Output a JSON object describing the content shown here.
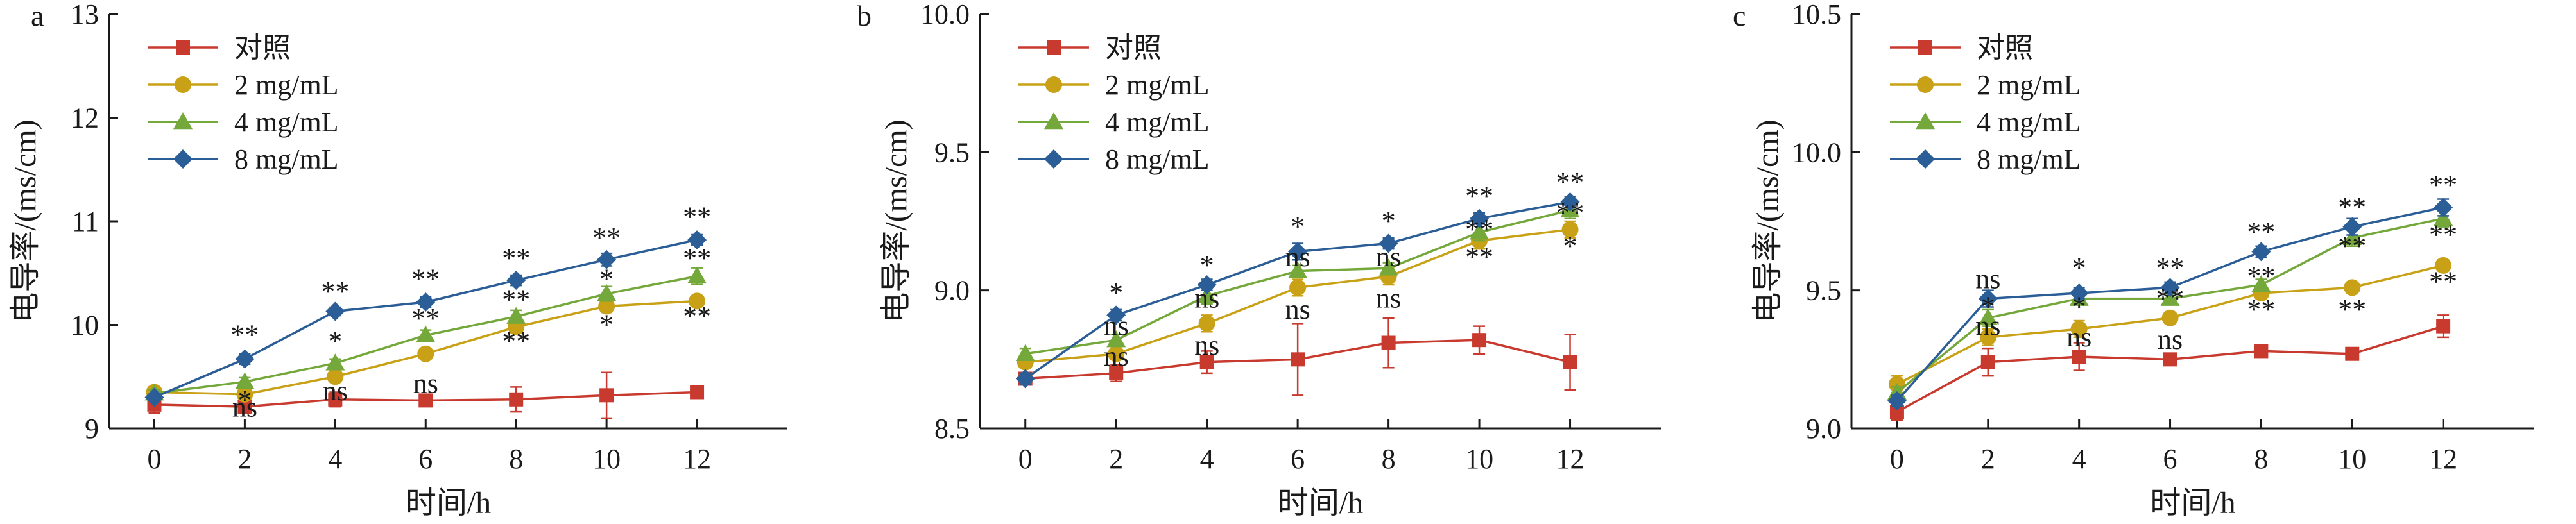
{
  "figure": {
    "colors": {
      "axis": "#1a1a1a",
      "errorbar": "#c8392e",
      "对照": "#c8392e",
      "2 mg/mL": "#c9a116",
      "4 mg/mL": "#74a83a",
      "8 mg/mL": "#2b5d96"
    },
    "markers": {
      "对照": "square",
      "2 mg/mL": "circle",
      "4 mg/mL": "triangle",
      "8 mg/mL": "diamond"
    }
  },
  "chart_data": [
    {
      "panel_label": "a",
      "type": "line",
      "xlabel": "时间/h",
      "ylabel": "电导率/(ms/cm)",
      "x": [
        0,
        2,
        4,
        6,
        8,
        10,
        12
      ],
      "xlim": [
        -1,
        14
      ],
      "ylim": [
        9,
        13
      ],
      "yticks": [
        9,
        10,
        11,
        12,
        13
      ],
      "ytick_labels": [
        "9",
        "10",
        "11",
        "12",
        "13"
      ],
      "legend_position": "top-left",
      "series": [
        {
          "name": "对照",
          "values": [
            9.23,
            9.21,
            9.28,
            9.27,
            9.28,
            9.32,
            9.35
          ],
          "err": [
            0.08,
            0.05,
            0.07,
            0.05,
            0.12,
            0.22,
            0.03
          ]
        },
        {
          "name": "2 mg/mL",
          "values": [
            9.35,
            9.33,
            9.5,
            9.72,
            9.98,
            10.18,
            10.23
          ],
          "err": [
            0.03,
            0.03,
            0.04,
            0.05,
            0.06,
            0.06,
            0.05
          ]
        },
        {
          "name": "4 mg/mL",
          "values": [
            9.34,
            9.45,
            9.63,
            9.9,
            10.08,
            10.3,
            10.47
          ],
          "err": [
            0.03,
            0.04,
            0.04,
            0.05,
            0.06,
            0.07,
            0.08
          ]
        },
        {
          "name": "8 mg/mL",
          "values": [
            9.3,
            9.67,
            10.13,
            10.22,
            10.43,
            10.63,
            10.82
          ],
          "err": [
            0.03,
            0.05,
            0.04,
            0.05,
            0.05,
            0.06,
            0.05
          ]
        }
      ],
      "annotations": [
        {
          "x": 2,
          "y": 9.9,
          "text": "**"
        },
        {
          "x": 2,
          "y": 9.27,
          "text": "*"
        },
        {
          "x": 2,
          "y": 9.2,
          "text": "ns"
        },
        {
          "x": 4,
          "y": 10.32,
          "text": "**"
        },
        {
          "x": 4,
          "y": 9.84,
          "text": "*"
        },
        {
          "x": 4,
          "y": 9.36,
          "text": "ns"
        },
        {
          "x": 6,
          "y": 10.44,
          "text": "**"
        },
        {
          "x": 6,
          "y": 10.06,
          "text": "**"
        },
        {
          "x": 6,
          "y": 9.43,
          "text": "ns"
        },
        {
          "x": 8,
          "y": 10.64,
          "text": "**"
        },
        {
          "x": 8,
          "y": 10.24,
          "text": "**"
        },
        {
          "x": 8,
          "y": 9.84,
          "text": "**"
        },
        {
          "x": 10,
          "y": 10.84,
          "text": "**"
        },
        {
          "x": 10,
          "y": 10.44,
          "text": "*"
        },
        {
          "x": 10,
          "y": 10.0,
          "text": "*"
        },
        {
          "x": 12,
          "y": 11.04,
          "text": "**"
        },
        {
          "x": 12,
          "y": 10.64,
          "text": "**"
        },
        {
          "x": 12,
          "y": 10.08,
          "text": "**"
        }
      ]
    },
    {
      "panel_label": "b",
      "type": "line",
      "xlabel": "时间/h",
      "ylabel": "电导率/(ms/cm)",
      "x": [
        0,
        2,
        4,
        6,
        8,
        10,
        12
      ],
      "xlim": [
        -1,
        14
      ],
      "ylim": [
        8.5,
        10.0
      ],
      "yticks": [
        8.5,
        9.0,
        9.5,
        10.0
      ],
      "ytick_labels": [
        "8.5",
        "9.0",
        "9.5",
        "10.0"
      ],
      "legend_position": "top-left",
      "series": [
        {
          "name": "对照",
          "values": [
            8.68,
            8.7,
            8.74,
            8.75,
            8.81,
            8.82,
            8.74
          ],
          "err": [
            0.02,
            0.03,
            0.04,
            0.13,
            0.09,
            0.05,
            0.1
          ]
        },
        {
          "name": "2 mg/mL",
          "values": [
            8.74,
            8.77,
            8.88,
            9.01,
            9.05,
            9.18,
            9.22
          ],
          "err": [
            0.02,
            0.02,
            0.03,
            0.03,
            0.03,
            0.03,
            0.03
          ]
        },
        {
          "name": "4 mg/mL",
          "values": [
            8.77,
            8.82,
            8.98,
            9.07,
            9.08,
            9.21,
            9.29
          ],
          "err": [
            0.02,
            0.02,
            0.03,
            0.02,
            0.02,
            0.03,
            0.03
          ]
        },
        {
          "name": "8 mg/mL",
          "values": [
            8.68,
            8.91,
            9.02,
            9.14,
            9.17,
            9.26,
            9.32
          ],
          "err": [
            0.02,
            0.02,
            0.02,
            0.03,
            0.02,
            0.02,
            0.02
          ]
        }
      ],
      "annotations": [
        {
          "x": 2,
          "y": 8.99,
          "text": "*"
        },
        {
          "x": 2,
          "y": 8.87,
          "text": "ns"
        },
        {
          "x": 2,
          "y": 8.76,
          "text": "ns"
        },
        {
          "x": 4,
          "y": 9.09,
          "text": "*"
        },
        {
          "x": 4,
          "y": 8.97,
          "text": "ns"
        },
        {
          "x": 4,
          "y": 8.8,
          "text": "ns"
        },
        {
          "x": 6,
          "y": 9.23,
          "text": "*"
        },
        {
          "x": 6,
          "y": 9.12,
          "text": "ns"
        },
        {
          "x": 6,
          "y": 8.93,
          "text": "ns"
        },
        {
          "x": 8,
          "y": 9.25,
          "text": "*"
        },
        {
          "x": 8,
          "y": 9.12,
          "text": "ns"
        },
        {
          "x": 8,
          "y": 8.97,
          "text": "ns"
        },
        {
          "x": 10,
          "y": 9.34,
          "text": "**"
        },
        {
          "x": 10,
          "y": 9.22,
          "text": "**"
        },
        {
          "x": 10,
          "y": 9.12,
          "text": "**"
        },
        {
          "x": 12,
          "y": 9.39,
          "text": "**"
        },
        {
          "x": 12,
          "y": 9.28,
          "text": "**"
        },
        {
          "x": 12,
          "y": 9.16,
          "text": "*"
        }
      ]
    },
    {
      "panel_label": "c",
      "type": "line",
      "xlabel": "时间/h",
      "ylabel": "电导率/(ms/cm)",
      "x": [
        0,
        2,
        4,
        6,
        8,
        10,
        12
      ],
      "xlim": [
        -1,
        14
      ],
      "ylim": [
        9.0,
        10.5
      ],
      "yticks": [
        9.0,
        9.5,
        10.0,
        10.5
      ],
      "ytick_labels": [
        "9.0",
        "9.5",
        "10.0",
        "10.5"
      ],
      "legend_position": "top-left",
      "series": [
        {
          "name": "对照",
          "values": [
            9.06,
            9.24,
            9.26,
            9.25,
            9.28,
            9.27,
            9.37
          ],
          "err": [
            0.03,
            0.05,
            0.05,
            0.01,
            0.02,
            0.01,
            0.04
          ]
        },
        {
          "name": "2 mg/mL",
          "values": [
            9.16,
            9.33,
            9.36,
            9.4,
            9.49,
            9.51,
            9.59
          ],
          "err": [
            0.03,
            0.03,
            0.03,
            0.02,
            0.02,
            0.02,
            0.02
          ]
        },
        {
          "name": "4 mg/mL",
          "values": [
            9.13,
            9.4,
            9.47,
            9.47,
            9.52,
            9.69,
            9.76
          ],
          "err": [
            0.02,
            0.03,
            0.02,
            0.02,
            0.02,
            0.03,
            0.03
          ]
        },
        {
          "name": "8 mg/mL",
          "values": [
            9.1,
            9.47,
            9.49,
            9.51,
            9.64,
            9.73,
            9.8
          ],
          "err": [
            0.02,
            0.03,
            0.02,
            0.02,
            0.02,
            0.03,
            0.03
          ]
        }
      ],
      "annotations": [
        {
          "x": 2,
          "y": 9.54,
          "text": "ns"
        },
        {
          "x": 2,
          "y": 9.44,
          "text": "*"
        },
        {
          "x": 2,
          "y": 9.37,
          "text": "ns"
        },
        {
          "x": 4,
          "y": 9.58,
          "text": "*"
        },
        {
          "x": 4,
          "y": 9.44,
          "text": "*"
        },
        {
          "x": 4,
          "y": 9.33,
          "text": "ns"
        },
        {
          "x": 6,
          "y": 9.58,
          "text": "**"
        },
        {
          "x": 6,
          "y": 9.47,
          "text": "**"
        },
        {
          "x": 6,
          "y": 9.32,
          "text": "ns"
        },
        {
          "x": 8,
          "y": 9.71,
          "text": "**"
        },
        {
          "x": 8,
          "y": 9.55,
          "text": "**"
        },
        {
          "x": 8,
          "y": 9.43,
          "text": "**"
        },
        {
          "x": 10,
          "y": 9.8,
          "text": "**"
        },
        {
          "x": 10,
          "y": 9.66,
          "text": "**"
        },
        {
          "x": 10,
          "y": 9.43,
          "text": "**"
        },
        {
          "x": 12,
          "y": 9.88,
          "text": "**"
        },
        {
          "x": 12,
          "y": 9.7,
          "text": "**"
        },
        {
          "x": 12,
          "y": 9.53,
          "text": "**"
        }
      ]
    }
  ]
}
